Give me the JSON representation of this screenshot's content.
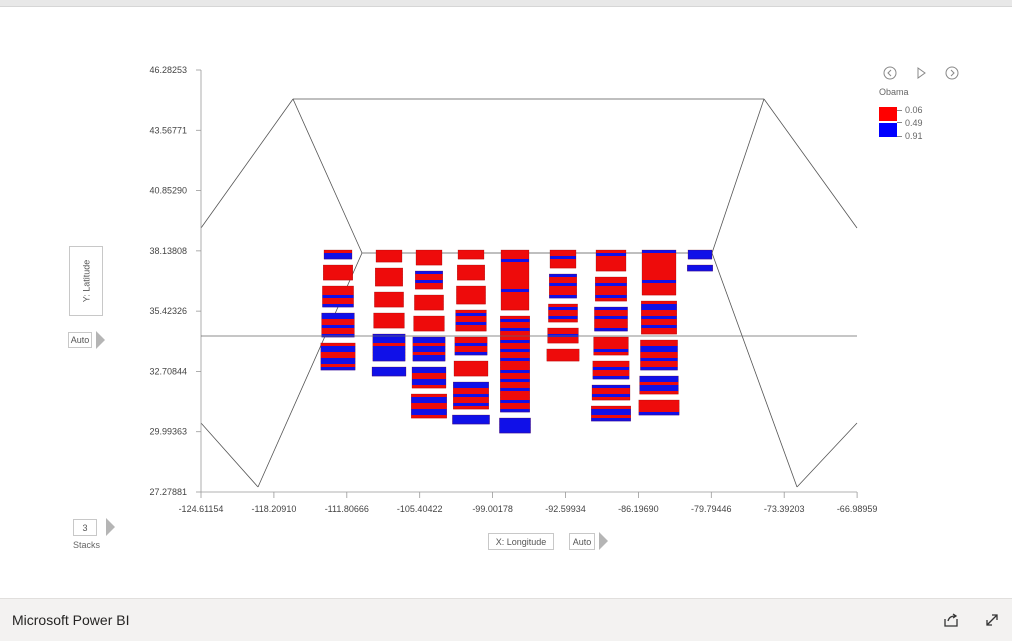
{
  "app": {
    "title": "Microsoft Power BI"
  },
  "controls": {
    "y_axis_button": "Y: Latitude",
    "x_axis_button": "X: Longitude",
    "y_auto": "Auto",
    "x_auto": "Auto",
    "stacks_value": "3",
    "stacks_label": "Stacks"
  },
  "legend": {
    "title": "Obama",
    "ticks": [
      "0.06",
      "0.49",
      "0.91"
    ],
    "colors": [
      "#ff0000",
      "#0000ff"
    ]
  },
  "icons": {
    "prev": "chevron-left-circle-icon",
    "play": "play-icon",
    "next": "chevron-right-circle-icon",
    "share": "share-icon",
    "expand": "expand-icon"
  },
  "chart_data": {
    "type": "3d-bar",
    "x_ticks": [
      "-124.61154",
      "-118.20910",
      "-111.80666",
      "-105.40422",
      "-99.00178",
      "-92.59934",
      "-86.19690",
      "-79.79446",
      "-73.39203",
      "-66.98959"
    ],
    "y_ticks": [
      "46.28253",
      "43.56771",
      "40.85290",
      "38.13808",
      "35.42326",
      "32.70844",
      "29.99363",
      "27.27881"
    ],
    "xlim": [
      -124.61154,
      -66.98959
    ],
    "ylim": [
      27.27881,
      46.28253
    ],
    "color_scale": {
      "field": "Obama",
      "min": 0.06,
      "mid": 0.49,
      "max": 0.91,
      "low_color": "#ff0000",
      "high_color": "#0000ff"
    },
    "bars": [
      {
        "col": 0,
        "cells": [
          [
            0.7,
            0.3
          ],
          [
            0.3,
            0.5
          ],
          [
            0.4,
            0.7
          ],
          [
            0.5,
            0.8
          ],
          [
            0.6,
            0.9
          ]
        ]
      },
      {
        "col": 1,
        "cells": [
          [
            0.2,
            0.4
          ],
          [
            0.2,
            0.6
          ],
          [
            0.3,
            0.5
          ],
          [
            0.2,
            0.5
          ],
          [
            0.8,
            0.9
          ],
          [
            0.8,
            0.3
          ]
        ]
      },
      {
        "col": 2,
        "cells": [
          [
            0.3,
            0.5
          ],
          [
            0.4,
            0.6
          ],
          [
            0.2,
            0.5
          ],
          [
            0.3,
            0.5
          ],
          [
            0.7,
            0.8
          ],
          [
            0.6,
            0.7
          ],
          [
            0.6,
            0.8
          ]
        ]
      },
      {
        "col": 3,
        "cells": [
          [
            0.2,
            0.3
          ],
          [
            0.3,
            0.5
          ],
          [
            0.3,
            0.6
          ],
          [
            0.4,
            0.7
          ],
          [
            0.4,
            0.6
          ],
          [
            0.3,
            0.5
          ],
          [
            0.5,
            0.9
          ],
          [
            0.9,
            0.3
          ]
        ]
      },
      {
        "col": 4,
        "cells": [
          [
            0.3,
            2.0
          ],
          [
            0.4,
            3.2
          ],
          [
            0.9,
            0.5
          ]
        ]
      },
      {
        "col": 5,
        "cells": [
          [
            0.3,
            0.6
          ],
          [
            0.4,
            0.8
          ],
          [
            0.4,
            0.6
          ],
          [
            0.5,
            0.5
          ],
          [
            0.3,
            0.4
          ]
        ]
      },
      {
        "col": 6,
        "cells": [
          [
            0.3,
            0.7
          ],
          [
            0.4,
            0.8
          ],
          [
            0.4,
            0.8
          ],
          [
            0.3,
            0.6
          ],
          [
            0.4,
            0.6
          ],
          [
            0.5,
            0.5
          ],
          [
            0.6,
            0.5
          ]
        ]
      },
      {
        "col": 7,
        "cells": [
          [
            0.3,
            1.5
          ],
          [
            0.5,
            1.1
          ],
          [
            0.5,
            1.0
          ],
          [
            0.6,
            0.6
          ],
          [
            0.3,
            0.5
          ]
        ]
      },
      {
        "col": 8,
        "cells": [
          [
            0.9,
            0.3
          ],
          [
            0.9,
            0.2
          ]
        ]
      }
    ]
  }
}
